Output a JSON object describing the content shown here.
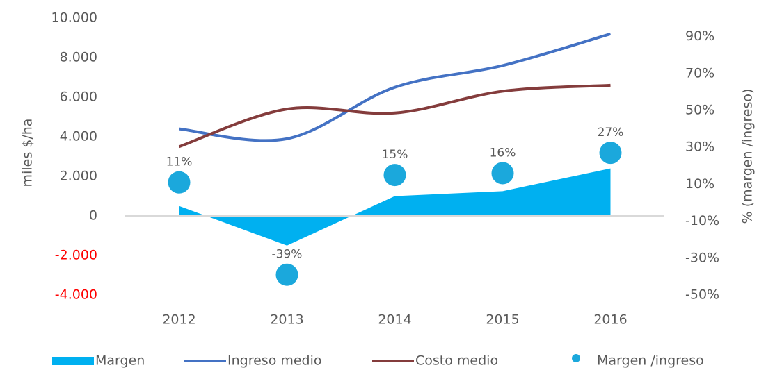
{
  "chart_data": {
    "type": "combo",
    "y_label": "miles $/ha",
    "y2_label": "% (margen /ingreso)",
    "categories": [
      "2012",
      "2013",
      "2014",
      "2015",
      "2016"
    ],
    "ylim": [
      -4000,
      10000
    ],
    "yticks": [
      {
        "value": -4000,
        "label": "-4.000"
      },
      {
        "value": -2000,
        "label": "-2.000"
      },
      0,
      {
        "value": 2000,
        "label": "2.000"
      },
      {
        "value": 4000,
        "label": "4.000"
      },
      {
        "value": 6000,
        "label": "6.000"
      },
      {
        "value": 8000,
        "label": "8.000"
      },
      {
        "value": 10000,
        "label": "10.000"
      }
    ],
    "negative_tick_color": "#ff0000",
    "y2lim": [
      -50,
      100
    ],
    "y2ticks": [
      {
        "value": -50,
        "label": "-50%"
      },
      {
        "value": -30,
        "label": "-30%"
      },
      {
        "value": -10,
        "label": "-10%"
      },
      {
        "value": 10,
        "label": "10%"
      },
      {
        "value": 30,
        "label": "30%"
      },
      {
        "value": 50,
        "label": "50%"
      },
      {
        "value": 70,
        "label": "70%"
      },
      {
        "value": 90,
        "label": "90%"
      }
    ],
    "series": [
      {
        "name": "Margen",
        "kind": "area",
        "color": "#00b0f0",
        "values": [
          500,
          -1500,
          1000,
          1250,
          2400
        ]
      },
      {
        "name": "Ingreso medio",
        "kind": "line",
        "color": "#4472c4",
        "values": [
          4400,
          3900,
          6500,
          7600,
          9200
        ]
      },
      {
        "name": "Costo medio",
        "kind": "line",
        "color": "#843c3c",
        "values": [
          3500,
          5400,
          5200,
          6300,
          6600
        ]
      },
      {
        "name": "Margen /ingreso",
        "kind": "scatter",
        "axis": "y2",
        "color": "#1ba8dc",
        "values": [
          11,
          -39,
          15,
          16,
          27
        ],
        "value_labels": [
          "11%",
          "-39%",
          "15%",
          "16%",
          "27%"
        ]
      }
    ]
  }
}
